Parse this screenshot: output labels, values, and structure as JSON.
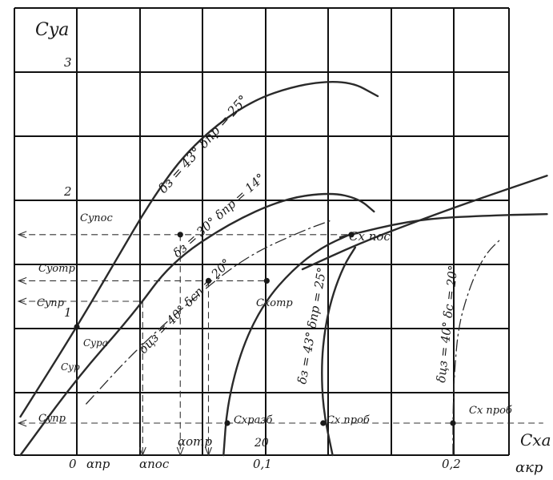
{
  "chart_data": {
    "type": "line",
    "title": "",
    "grid": true,
    "ylabel": "Cya",
    "xlabel_top": "Cxa",
    "xlabel_bottom": "αкр",
    "y_tick_labels": [
      "1",
      "2",
      "3"
    ],
    "x_tick_labels": [
      "0",
      "0,1",
      "0,2"
    ],
    "x_extra_label": "20",
    "left_labels": [
      "Cyпос",
      "Cyотр",
      "Cyпр",
      "Cyра",
      "Cyр",
      "Cyпр"
    ],
    "bottom_labels": [
      "αпр",
      "αпос",
      "αотр"
    ],
    "point_labels": [
      "Cx пос",
      "Cxотр",
      "Cxразб",
      "Cx проб",
      "Cx проб"
    ],
    "series": [
      {
        "name": "δз = 43°  δпр = 25°",
        "style": "solid",
        "points": [
          [
            -0.03,
            0.3
          ],
          [
            0.0,
            1.0
          ],
          [
            0.02,
            1.5
          ],
          [
            0.04,
            2.0
          ],
          [
            0.06,
            2.4
          ],
          [
            0.09,
            2.75
          ],
          [
            0.12,
            2.9
          ],
          [
            0.145,
            2.92
          ],
          [
            0.16,
            2.8
          ]
        ]
      },
      {
        "name": "δз = 30°  δпр = 14°",
        "style": "solid",
        "points": [
          [
            -0.03,
            0.0
          ],
          [
            0.0,
            0.6
          ],
          [
            0.03,
            1.1
          ],
          [
            0.05,
            1.5
          ],
          [
            0.08,
            1.8
          ],
          [
            0.11,
            2.0
          ],
          [
            0.135,
            2.05
          ],
          [
            0.15,
            2.0
          ],
          [
            0.158,
            1.9
          ]
        ]
      },
      {
        "name": "δцз = 40°  δсп = 20°",
        "style": "dash-dot",
        "points": [
          [
            0.005,
            0.4
          ],
          [
            0.03,
            0.8
          ],
          [
            0.06,
            1.2
          ],
          [
            0.09,
            1.55
          ],
          [
            0.12,
            1.75
          ],
          [
            0.135,
            1.83
          ]
        ]
      },
      {
        "name": "",
        "style": "solid",
        "points": [
          [
            0.12,
            1.45
          ],
          [
            0.15,
            1.65
          ],
          [
            0.18,
            1.82
          ],
          [
            0.21,
            1.98
          ],
          [
            0.24,
            2.13
          ],
          [
            0.25,
            2.18
          ]
        ]
      },
      {
        "name": "",
        "style": "solid",
        "points": [
          [
            0.14,
            1.7
          ],
          [
            0.18,
            1.84
          ],
          [
            0.22,
            1.87
          ],
          [
            0.25,
            1.88
          ]
        ]
      },
      {
        "name": "",
        "style": "solid",
        "points": [
          [
            0.078,
            0.0
          ],
          [
            0.08,
            0.4
          ],
          [
            0.088,
            0.85
          ],
          [
            0.1,
            1.2
          ],
          [
            0.115,
            1.45
          ],
          [
            0.13,
            1.62
          ],
          [
            0.145,
            1.72
          ]
        ]
      },
      {
        "name": "δз = 43°  δпр = 25°",
        "style": "solid",
        "points": [
          [
            0.136,
            0.0
          ],
          [
            0.131,
            0.35
          ],
          [
            0.13,
            0.7
          ],
          [
            0.132,
            1.0
          ],
          [
            0.136,
            1.25
          ],
          [
            0.142,
            1.48
          ],
          [
            0.148,
            1.62
          ]
        ]
      },
      {
        "name": "δцз = 40°  δс = 20°",
        "style": "dash-dot",
        "points": [
          [
            0.2,
            0.0
          ],
          [
            0.2,
            0.35
          ],
          [
            0.201,
            0.7
          ],
          [
            0.203,
            1.0
          ],
          [
            0.207,
            1.22
          ],
          [
            0.212,
            1.42
          ],
          [
            0.218,
            1.58
          ],
          [
            0.225,
            1.68
          ]
        ]
      }
    ],
    "dashed_guides": [
      {
        "y": 1.72,
        "from_x": -0.031,
        "to_x": 0.146
      },
      {
        "y": 1.36,
        "from_x": -0.031,
        "to_x": 0.101
      },
      {
        "y": 1.2,
        "from_x": -0.031,
        "to_x": 0.035
      },
      {
        "y": 0.25,
        "from_x": -0.031,
        "to_x": 0.248
      },
      {
        "x": 0.035,
        "from_y": 0.0,
        "to_y": 1.2
      },
      {
        "x": 0.055,
        "from_y": 0.0,
        "to_y": 1.72
      },
      {
        "x": 0.07,
        "from_y": 0.0,
        "to_y": 1.36
      }
    ],
    "markers": [
      {
        "x": 0.055,
        "y": 1.72
      },
      {
        "x": 0.146,
        "y": 1.72
      },
      {
        "x": 0.07,
        "y": 1.36
      },
      {
        "x": 0.101,
        "y": 1.36
      },
      {
        "x": 0.0,
        "y": 1.0
      },
      {
        "x": 0.08,
        "y": 0.25
      },
      {
        "x": 0.131,
        "y": 0.25
      },
      {
        "x": 0.2,
        "y": 0.25
      }
    ]
  }
}
